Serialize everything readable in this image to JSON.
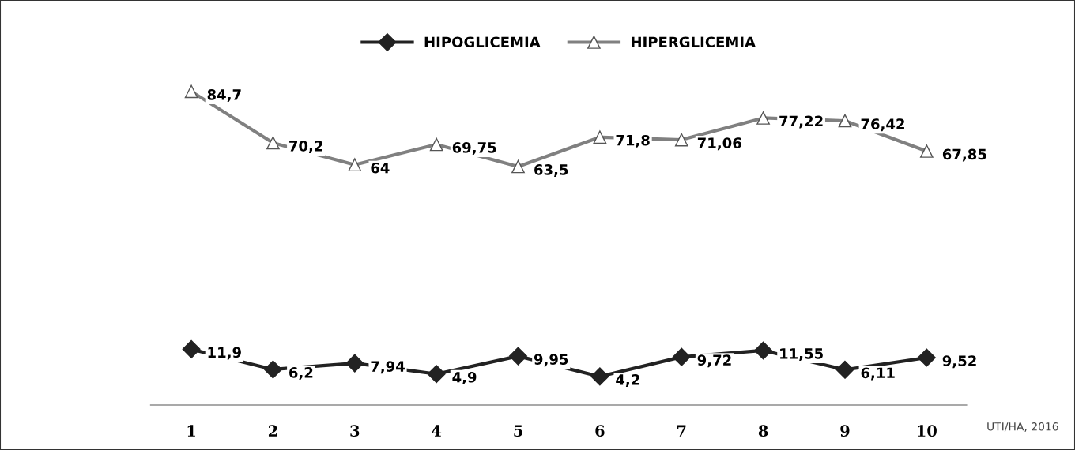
{
  "chart_data": {
    "type": "line",
    "categories": [
      "1",
      "2",
      "3",
      "4",
      "5",
      "6",
      "7",
      "8",
      "9",
      "10"
    ],
    "series": [
      {
        "name": "HIPOGLICEMIA",
        "color": "#222222",
        "marker": "diamond",
        "values": [
          11.9,
          6.2,
          7.94,
          4.9,
          9.95,
          4.2,
          9.72,
          11.55,
          6.11,
          9.52
        ],
        "value_labels": [
          "11,9",
          "6,2",
          "7,94",
          "4,9",
          "9,95",
          "4,2",
          "9,72",
          "11,55",
          "6,11",
          "9,52"
        ]
      },
      {
        "name": "HIPERGLICEMIA",
        "color": "#808080",
        "marker": "triangle",
        "values": [
          84.7,
          70.2,
          64,
          69.75,
          63.5,
          71.8,
          71.06,
          77.22,
          76.42,
          67.85
        ],
        "value_labels": [
          "84,7",
          "70,2",
          "64",
          "69,75",
          "63,5",
          "71,8",
          "71,06",
          "77,22",
          "76,42",
          "67,85"
        ]
      }
    ],
    "grid": false,
    "legend": "top",
    "tick_labels": "x",
    "line_style": "solid",
    "annotations": [
      "UTI/HA, 2016"
    ]
  }
}
